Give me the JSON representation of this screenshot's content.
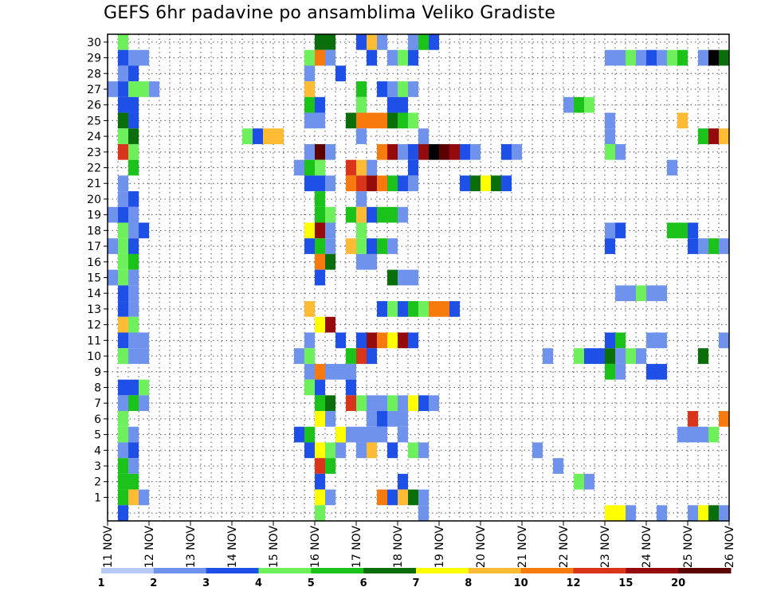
{
  "chart_data": {
    "type": "heatmap",
    "title": "GEFS 6hr padavine po ansamblima Veliko Gradiste",
    "xlabel": "",
    "ylabel": "",
    "x_tick_labels": [
      "11 NOV",
      "12 NOV",
      "13 NOV",
      "14 NOV",
      "15 NOV",
      "16 NOV",
      "17 NOV",
      "18 NOV",
      "19 NOV",
      "20 NOV",
      "21 NOV",
      "22 NOV",
      "23 NOV",
      "24 NOV",
      "25 NOV",
      "26 NOV"
    ],
    "y_tick_labels": [
      "1",
      "2",
      "3",
      "4",
      "5",
      "6",
      "7",
      "8",
      "9",
      "10",
      "11",
      "12",
      "13",
      "14",
      "15",
      "16",
      "17",
      "18",
      "19",
      "20",
      "21",
      "22",
      "23",
      "24",
      "25",
      "26",
      "27",
      "28",
      "29",
      "30"
    ],
    "x_range_days": [
      11,
      26
    ],
    "y_range_members": [
      0,
      30
    ],
    "grid": "dotted",
    "legend_position": "bottom",
    "legend_levels": [
      "1",
      "2",
      "3",
      "4",
      "5",
      "6",
      "7",
      "8",
      "10",
      "12",
      "15",
      "20"
    ],
    "bin_colors": [
      "#b9c9f5",
      "#6f93ec",
      "#1e4fe6",
      "#6ef05c",
      "#1ac21a",
      "#0a6e0a",
      "#ffff00",
      "#ffbb33",
      "#f67a0e",
      "#d9351a",
      "#950a0a",
      "#5c0000"
    ],
    "cell_step_hours": 6,
    "cells": [
      [
        30,
        11.25,
        3
      ],
      [
        30,
        16.0,
        5
      ],
      [
        30,
        16.25,
        5
      ],
      [
        30,
        17.0,
        2
      ],
      [
        30,
        17.25,
        7
      ],
      [
        30,
        17.5,
        1
      ],
      [
        30,
        18.25,
        1
      ],
      [
        30,
        18.5,
        4
      ],
      [
        30,
        18.75,
        2
      ],
      [
        29,
        11.25,
        2
      ],
      [
        29,
        11.5,
        1
      ],
      [
        29,
        11.75,
        1
      ],
      [
        29,
        15.75,
        3
      ],
      [
        29,
        16.0,
        8
      ],
      [
        29,
        16.25,
        1
      ],
      [
        29,
        17.25,
        2
      ],
      [
        29,
        17.75,
        1
      ],
      [
        29,
        18.0,
        3
      ],
      [
        29,
        18.25,
        2
      ],
      [
        29,
        23.0,
        1
      ],
      [
        29,
        23.25,
        1
      ],
      [
        29,
        23.5,
        3
      ],
      [
        29,
        23.75,
        1
      ],
      [
        29,
        24.0,
        2
      ],
      [
        29,
        24.25,
        1
      ],
      [
        29,
        24.5,
        3
      ],
      [
        29,
        24.75,
        4
      ],
      [
        29,
        25.25,
        1
      ],
      [
        29,
        25.5,
        12
      ],
      [
        29,
        25.75,
        5
      ],
      [
        29,
        26.0,
        5
      ],
      [
        28,
        11.25,
        1
      ],
      [
        28,
        11.5,
        2
      ],
      [
        28,
        15.75,
        1
      ],
      [
        28,
        16.5,
        2
      ],
      [
        27,
        11.0,
        1
      ],
      [
        27,
        11.25,
        2
      ],
      [
        27,
        11.5,
        3
      ],
      [
        27,
        11.75,
        3
      ],
      [
        27,
        12.0,
        1
      ],
      [
        27,
        15.75,
        7
      ],
      [
        27,
        17.0,
        4
      ],
      [
        27,
        17.5,
        2
      ],
      [
        27,
        17.75,
        1
      ],
      [
        27,
        18.0,
        3
      ],
      [
        27,
        18.25,
        1
      ],
      [
        26,
        11.25,
        2
      ],
      [
        26,
        11.5,
        2
      ],
      [
        26,
        15.75,
        4
      ],
      [
        26,
        16.0,
        2
      ],
      [
        26,
        17.0,
        3
      ],
      [
        26,
        17.75,
        2
      ],
      [
        26,
        18.0,
        2
      ],
      [
        26,
        22.0,
        1
      ],
      [
        26,
        22.25,
        4
      ],
      [
        26,
        22.5,
        3
      ],
      [
        25,
        11.25,
        5
      ],
      [
        25,
        11.5,
        2
      ],
      [
        25,
        15.75,
        1
      ],
      [
        25,
        16.0,
        1
      ],
      [
        25,
        16.75,
        5
      ],
      [
        25,
        17.0,
        8
      ],
      [
        25,
        17.25,
        8
      ],
      [
        25,
        17.5,
        8
      ],
      [
        25,
        17.75,
        5
      ],
      [
        25,
        18.0,
        4
      ],
      [
        25,
        18.25,
        3
      ],
      [
        25,
        23.0,
        1
      ],
      [
        25,
        24.75,
        7
      ],
      [
        24,
        11.25,
        3
      ],
      [
        24,
        11.5,
        5
      ],
      [
        24,
        14.25,
        3
      ],
      [
        24,
        14.5,
        2
      ],
      [
        24,
        14.75,
        7
      ],
      [
        24,
        15.0,
        7
      ],
      [
        24,
        17.0,
        1
      ],
      [
        24,
        18.5,
        1
      ],
      [
        24,
        23.0,
        1
      ],
      [
        24,
        25.25,
        4
      ],
      [
        24,
        25.5,
        10
      ],
      [
        24,
        25.75,
        7
      ],
      [
        24,
        26.0,
        2
      ],
      [
        23,
        11.25,
        9
      ],
      [
        23,
        11.5,
        3
      ],
      [
        23,
        15.75,
        1
      ],
      [
        23,
        16.0,
        11
      ],
      [
        23,
        16.25,
        1
      ],
      [
        23,
        17.5,
        8
      ],
      [
        23,
        17.75,
        10
      ],
      [
        23,
        18.0,
        1
      ],
      [
        23,
        18.25,
        2
      ],
      [
        23,
        18.5,
        10
      ],
      [
        23,
        18.75,
        12
      ],
      [
        23,
        19.0,
        11
      ],
      [
        23,
        19.25,
        10
      ],
      [
        23,
        19.5,
        2
      ],
      [
        23,
        19.75,
        1
      ],
      [
        23,
        20.5,
        2
      ],
      [
        23,
        20.75,
        1
      ],
      [
        23,
        23.0,
        3
      ],
      [
        23,
        23.25,
        1
      ],
      [
        22,
        11.5,
        4
      ],
      [
        22,
        15.5,
        1
      ],
      [
        22,
        15.75,
        4
      ],
      [
        22,
        16.0,
        3
      ],
      [
        22,
        16.75,
        9
      ],
      [
        22,
        17.0,
        7
      ],
      [
        22,
        17.25,
        1
      ],
      [
        22,
        18.25,
        2
      ],
      [
        22,
        24.5,
        1
      ],
      [
        21,
        11.25,
        1
      ],
      [
        21,
        15.75,
        2
      ],
      [
        21,
        16.0,
        2
      ],
      [
        21,
        16.25,
        1
      ],
      [
        21,
        16.75,
        8
      ],
      [
        21,
        17.0,
        9
      ],
      [
        21,
        17.25,
        10
      ],
      [
        21,
        17.5,
        8
      ],
      [
        21,
        17.75,
        4
      ],
      [
        21,
        18.0,
        2
      ],
      [
        21,
        18.25,
        1
      ],
      [
        21,
        19.5,
        2
      ],
      [
        21,
        19.75,
        5
      ],
      [
        21,
        20.0,
        6
      ],
      [
        21,
        20.25,
        5
      ],
      [
        21,
        20.5,
        2
      ],
      [
        20,
        11.25,
        1
      ],
      [
        20,
        11.5,
        2
      ],
      [
        20,
        16.0,
        4
      ],
      [
        20,
        17.0,
        1
      ],
      [
        19,
        11.0,
        1
      ],
      [
        19,
        11.25,
        2
      ],
      [
        19,
        11.5,
        1
      ],
      [
        19,
        16.0,
        4
      ],
      [
        19,
        16.25,
        3
      ],
      [
        19,
        16.75,
        4
      ],
      [
        19,
        17.0,
        7
      ],
      [
        19,
        17.25,
        2
      ],
      [
        19,
        17.5,
        4
      ],
      [
        19,
        17.75,
        4
      ],
      [
        19,
        18.0,
        1
      ],
      [
        18,
        11.25,
        3
      ],
      [
        18,
        11.5,
        1
      ],
      [
        18,
        11.75,
        2
      ],
      [
        18,
        15.75,
        6
      ],
      [
        18,
        16.0,
        10
      ],
      [
        18,
        16.25,
        1
      ],
      [
        18,
        17.0,
        3
      ],
      [
        18,
        23.0,
        1
      ],
      [
        18,
        23.25,
        2
      ],
      [
        18,
        24.5,
        4
      ],
      [
        18,
        24.75,
        4
      ],
      [
        18,
        25.0,
        2
      ],
      [
        17,
        11.0,
        1
      ],
      [
        17,
        11.25,
        3
      ],
      [
        17,
        11.5,
        2
      ],
      [
        17,
        15.75,
        2
      ],
      [
        17,
        16.0,
        4
      ],
      [
        17,
        16.25,
        1
      ],
      [
        17,
        16.75,
        7
      ],
      [
        17,
        17.0,
        3
      ],
      [
        17,
        17.25,
        2
      ],
      [
        17,
        17.5,
        4
      ],
      [
        17,
        17.75,
        1
      ],
      [
        17,
        23.0,
        2
      ],
      [
        17,
        25.0,
        2
      ],
      [
        17,
        25.25,
        1
      ],
      [
        17,
        25.5,
        4
      ],
      [
        17,
        25.75,
        1
      ],
      [
        16,
        11.25,
        3
      ],
      [
        16,
        11.5,
        4
      ],
      [
        16,
        16.0,
        8
      ],
      [
        16,
        16.25,
        5
      ],
      [
        16,
        17.0,
        1
      ],
      [
        16,
        17.25,
        1
      ],
      [
        15,
        11.0,
        1
      ],
      [
        15,
        11.25,
        3
      ],
      [
        15,
        11.5,
        1
      ],
      [
        15,
        16.0,
        2
      ],
      [
        15,
        17.75,
        5
      ],
      [
        15,
        18.0,
        1
      ],
      [
        15,
        18.25,
        1
      ],
      [
        14,
        11.25,
        2
      ],
      [
        14,
        11.5,
        1
      ],
      [
        14,
        23.25,
        1
      ],
      [
        14,
        23.5,
        1
      ],
      [
        14,
        23.75,
        3
      ],
      [
        14,
        24.0,
        1
      ],
      [
        14,
        24.25,
        1
      ],
      [
        13,
        11.25,
        2
      ],
      [
        13,
        11.5,
        1
      ],
      [
        13,
        15.75,
        7
      ],
      [
        13,
        17.5,
        2
      ],
      [
        13,
        17.75,
        3
      ],
      [
        13,
        18.0,
        2
      ],
      [
        13,
        18.25,
        4
      ],
      [
        13,
        18.5,
        3
      ],
      [
        13,
        18.75,
        8
      ],
      [
        13,
        19.0,
        8
      ],
      [
        13,
        19.25,
        2
      ],
      [
        12,
        11.25,
        7
      ],
      [
        12,
        11.5,
        3
      ],
      [
        12,
        16.0,
        6
      ],
      [
        12,
        16.25,
        10
      ],
      [
        11,
        11.25,
        2
      ],
      [
        11,
        11.5,
        1
      ],
      [
        11,
        11.75,
        1
      ],
      [
        11,
        15.75,
        1
      ],
      [
        11,
        16.5,
        2
      ],
      [
        11,
        17.0,
        2
      ],
      [
        11,
        17.25,
        10
      ],
      [
        11,
        17.5,
        8
      ],
      [
        11,
        17.75,
        6
      ],
      [
        11,
        18.0,
        10
      ],
      [
        11,
        18.25,
        2
      ],
      [
        11,
        23.0,
        2
      ],
      [
        11,
        23.25,
        4
      ],
      [
        11,
        24.0,
        1
      ],
      [
        11,
        24.25,
        1
      ],
      [
        11,
        25.75,
        1
      ],
      [
        10,
        11.25,
        3
      ],
      [
        10,
        11.5,
        1
      ],
      [
        10,
        11.75,
        1
      ],
      [
        10,
        15.5,
        1
      ],
      [
        10,
        15.75,
        3
      ],
      [
        10,
        16.75,
        4
      ],
      [
        10,
        17.0,
        9
      ],
      [
        10,
        17.25,
        2
      ],
      [
        10,
        21.5,
        1
      ],
      [
        10,
        22.25,
        3
      ],
      [
        10,
        22.5,
        2
      ],
      [
        10,
        22.75,
        2
      ],
      [
        10,
        23.0,
        5
      ],
      [
        10,
        23.25,
        1
      ],
      [
        10,
        23.5,
        3
      ],
      [
        10,
        23.75,
        1
      ],
      [
        10,
        25.25,
        5
      ],
      [
        9,
        15.75,
        1
      ],
      [
        9,
        16.0,
        8
      ],
      [
        9,
        16.25,
        1
      ],
      [
        9,
        16.5,
        1
      ],
      [
        9,
        16.75,
        1
      ],
      [
        9,
        23.0,
        4
      ],
      [
        9,
        23.25,
        1
      ],
      [
        9,
        24.0,
        2
      ],
      [
        9,
        24.25,
        2
      ],
      [
        8,
        11.25,
        2
      ],
      [
        8,
        11.5,
        2
      ],
      [
        8,
        11.75,
        3
      ],
      [
        8,
        15.75,
        3
      ],
      [
        8,
        16.0,
        2
      ],
      [
        8,
        16.75,
        2
      ],
      [
        7,
        11.25,
        1
      ],
      [
        7,
        11.5,
        4
      ],
      [
        7,
        11.75,
        1
      ],
      [
        7,
        16.0,
        4
      ],
      [
        7,
        16.25,
        5
      ],
      [
        7,
        16.75,
        9
      ],
      [
        7,
        17.0,
        3
      ],
      [
        7,
        17.25,
        1
      ],
      [
        7,
        17.5,
        1
      ],
      [
        7,
        17.75,
        3
      ],
      [
        7,
        18.0,
        1
      ],
      [
        7,
        18.25,
        6
      ],
      [
        7,
        18.5,
        2
      ],
      [
        7,
        18.75,
        1
      ],
      [
        6,
        11.25,
        3
      ],
      [
        6,
        16.0,
        6
      ],
      [
        6,
        16.25,
        1
      ],
      [
        6,
        17.25,
        1
      ],
      [
        6,
        17.5,
        2
      ],
      [
        6,
        17.75,
        1
      ],
      [
        6,
        18.0,
        1
      ],
      [
        6,
        25.0,
        9
      ],
      [
        6,
        25.75,
        8
      ],
      [
        5,
        11.25,
        3
      ],
      [
        5,
        11.5,
        1
      ],
      [
        5,
        15.5,
        2
      ],
      [
        5,
        15.75,
        4
      ],
      [
        5,
        16.5,
        6
      ],
      [
        5,
        16.75,
        1
      ],
      [
        5,
        17.0,
        1
      ],
      [
        5,
        17.25,
        1
      ],
      [
        5,
        17.5,
        1
      ],
      [
        5,
        18.0,
        1
      ],
      [
        5,
        24.75,
        1
      ],
      [
        5,
        25.0,
        1
      ],
      [
        5,
        25.25,
        1
      ],
      [
        5,
        25.5,
        3
      ],
      [
        5,
        26.0,
        1
      ],
      [
        4,
        11.25,
        1
      ],
      [
        4,
        11.5,
        2
      ],
      [
        4,
        15.75,
        2
      ],
      [
        4,
        16.0,
        6
      ],
      [
        4,
        16.25,
        3
      ],
      [
        4,
        16.5,
        1
      ],
      [
        4,
        17.0,
        1
      ],
      [
        4,
        17.25,
        7
      ],
      [
        4,
        17.75,
        2
      ],
      [
        4,
        18.25,
        3
      ],
      [
        4,
        18.5,
        1
      ],
      [
        4,
        21.25,
        1
      ],
      [
        3,
        11.25,
        4
      ],
      [
        3,
        11.5,
        1
      ],
      [
        3,
        16.0,
        9
      ],
      [
        3,
        16.25,
        4
      ],
      [
        3,
        21.75,
        1
      ],
      [
        2,
        11.25,
        4
      ],
      [
        2,
        11.5,
        4
      ],
      [
        2,
        16.0,
        2
      ],
      [
        2,
        18.0,
        2
      ],
      [
        2,
        22.25,
        3
      ],
      [
        2,
        22.5,
        1
      ],
      [
        1,
        11.25,
        4
      ],
      [
        1,
        11.5,
        7
      ],
      [
        1,
        11.75,
        1
      ],
      [
        1,
        16.0,
        6
      ],
      [
        1,
        16.25,
        1
      ],
      [
        1,
        17.5,
        8
      ],
      [
        1,
        17.75,
        2
      ],
      [
        1,
        18.0,
        7
      ],
      [
        1,
        18.25,
        5
      ],
      [
        1,
        18.5,
        1
      ],
      [
        0,
        11.25,
        2
      ],
      [
        0,
        16.0,
        3
      ],
      [
        0,
        18.5,
        1
      ],
      [
        0,
        23.0,
        6
      ],
      [
        0,
        23.25,
        6
      ],
      [
        0,
        23.5,
        1
      ],
      [
        0,
        24.25,
        1
      ],
      [
        0,
        25.0,
        1
      ],
      [
        0,
        25.25,
        6
      ],
      [
        0,
        25.5,
        5
      ],
      [
        0,
        25.75,
        1
      ],
      [
        0,
        26.0,
        1
      ]
    ]
  }
}
